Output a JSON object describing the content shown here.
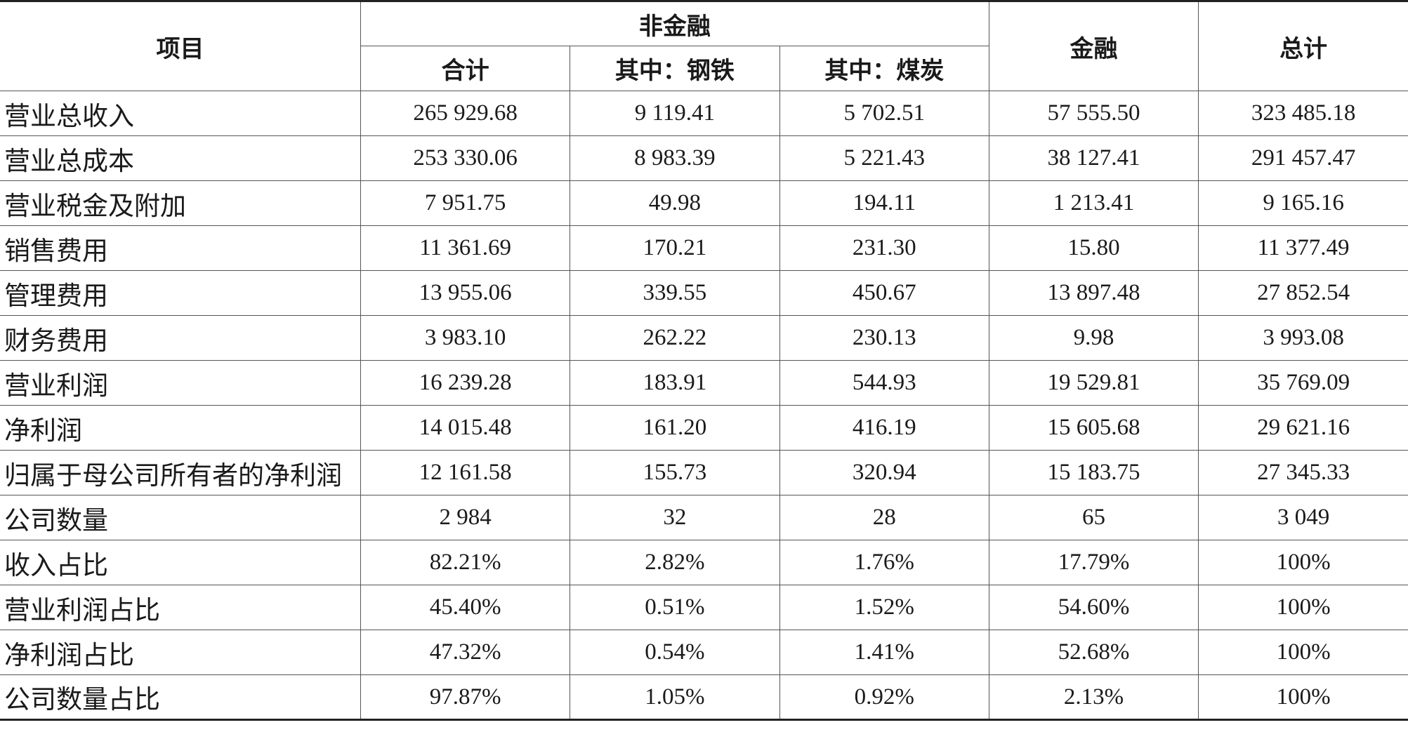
{
  "header": {
    "item": "项目",
    "non_financial": "非金融",
    "total_sub": "合计",
    "steel": "其中：钢铁",
    "coal": "其中：煤炭",
    "financial": "金融",
    "grand_total": "总计"
  },
  "rows": [
    {
      "label": "营业总收入",
      "v": [
        "265 929.68",
        "9 119.41",
        "5 702.51",
        "57 555.50",
        "323 485.18"
      ]
    },
    {
      "label": "营业总成本",
      "v": [
        "253 330.06",
        "8 983.39",
        "5 221.43",
        "38 127.41",
        "291 457.47"
      ]
    },
    {
      "label": "营业税金及附加",
      "v": [
        "7 951.75",
        "49.98",
        "194.11",
        "1 213.41",
        "9 165.16"
      ]
    },
    {
      "label": "销售费用",
      "v": [
        "11 361.69",
        "170.21",
        "231.30",
        "15.80",
        "11 377.49"
      ]
    },
    {
      "label": "管理费用",
      "v": [
        "13 955.06",
        "339.55",
        "450.67",
        "13 897.48",
        "27 852.54"
      ]
    },
    {
      "label": "财务费用",
      "v": [
        "3 983.10",
        "262.22",
        "230.13",
        "9.98",
        "3 993.08"
      ]
    },
    {
      "label": "营业利润",
      "v": [
        "16 239.28",
        "183.91",
        "544.93",
        "19 529.81",
        "35 769.09"
      ]
    },
    {
      "label": "净利润",
      "v": [
        "14 015.48",
        "161.20",
        "416.19",
        "15 605.68",
        "29 621.16"
      ]
    },
    {
      "label": "归属于母公司所有者的净利润",
      "v": [
        "12 161.58",
        "155.73",
        "320.94",
        "15 183.75",
        "27 345.33"
      ]
    },
    {
      "label": "公司数量",
      "v": [
        "2 984",
        "32",
        "28",
        "65",
        "3 049"
      ]
    },
    {
      "label": "收入占比",
      "v": [
        "82.21%",
        "2.82%",
        "1.76%",
        "17.79%",
        "100%"
      ]
    },
    {
      "label": "营业利润占比",
      "v": [
        "45.40%",
        "0.51%",
        "1.52%",
        "54.60%",
        "100%"
      ]
    },
    {
      "label": "净利润占比",
      "v": [
        "47.32%",
        "0.54%",
        "1.41%",
        "52.68%",
        "100%"
      ]
    },
    {
      "label": "公司数量占比",
      "v": [
        "97.87%",
        "1.05%",
        "0.92%",
        "2.13%",
        "100%"
      ]
    }
  ]
}
